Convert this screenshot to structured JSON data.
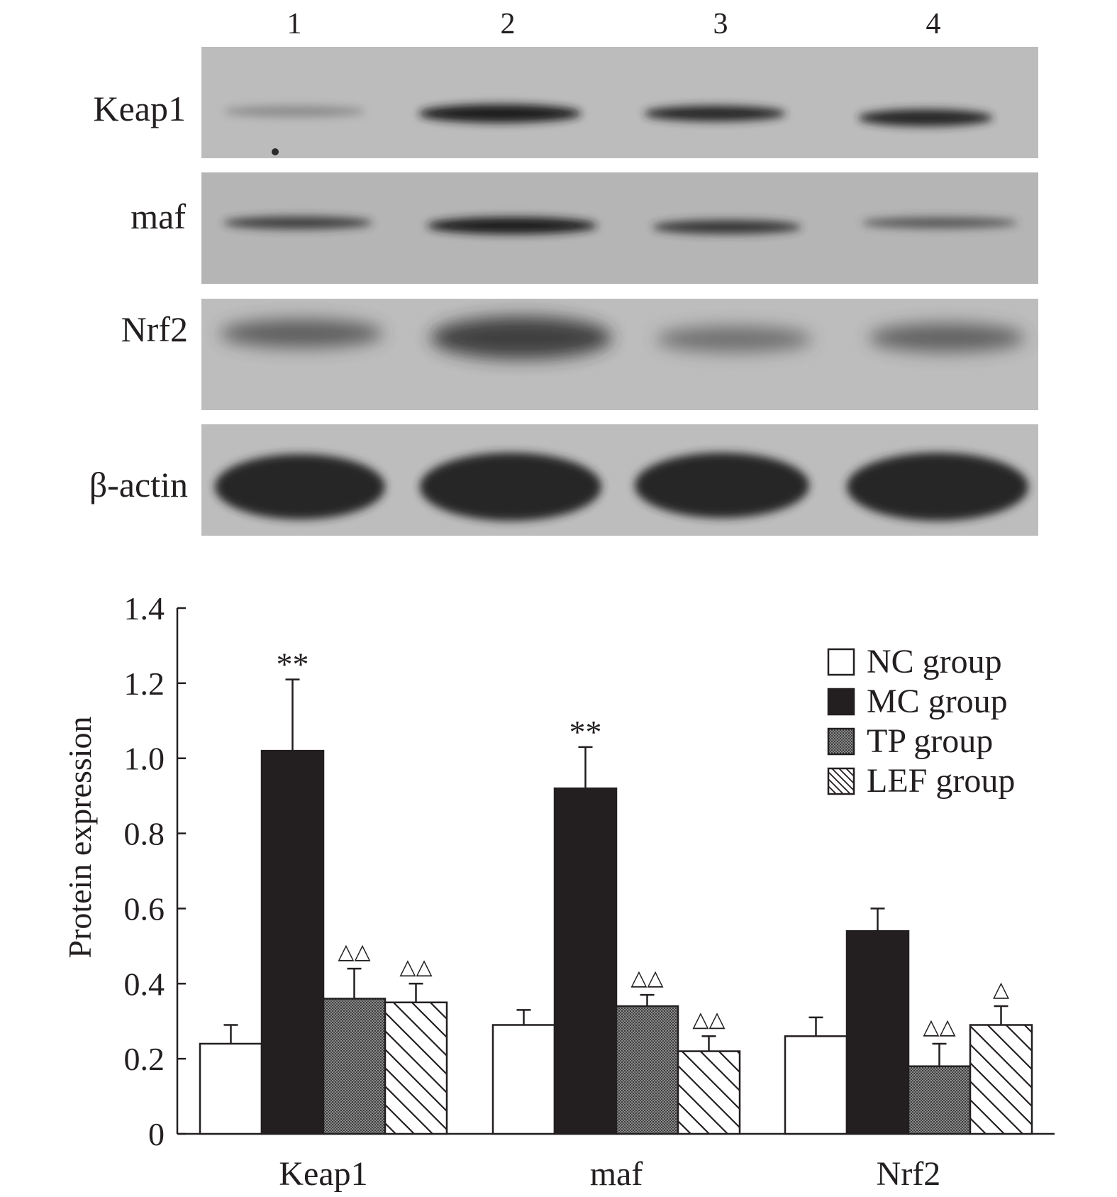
{
  "blot": {
    "lane_labels": [
      "1",
      "2",
      "3",
      "4"
    ],
    "rows": [
      {
        "label": "Keap1"
      },
      {
        "label": "maf"
      },
      {
        "label": "Nrf2"
      },
      {
        "label": "β-actin"
      }
    ]
  },
  "chart_data": {
    "type": "bar",
    "categories": [
      "Keap1",
      "maf",
      "Nrf2"
    ],
    "ylabel": "Protein expression",
    "xlabel": "",
    "ylim": [
      0,
      1.4
    ],
    "yticks": [
      "0",
      "0.2",
      "0.4",
      "0.6",
      "0.8",
      "1.0",
      "1.2",
      "1.4"
    ],
    "legend_position": "top-right",
    "series": [
      {
        "name": "NC group",
        "fill": "white",
        "values": [
          0.24,
          0.29,
          0.26
        ],
        "errors": [
          0.05,
          0.04,
          0.05
        ],
        "annotations": [
          "",
          "",
          ""
        ]
      },
      {
        "name": "MC group",
        "fill": "black",
        "values": [
          1.02,
          0.92,
          0.54
        ],
        "errors": [
          0.19,
          0.11,
          0.06
        ],
        "annotations": [
          "**",
          "**",
          ""
        ]
      },
      {
        "name": "TP group",
        "fill": "stipple",
        "values": [
          0.36,
          0.34,
          0.18
        ],
        "errors": [
          0.08,
          0.03,
          0.06
        ],
        "annotations": [
          "△△",
          "△△",
          "△△"
        ]
      },
      {
        "name": "LEF group",
        "fill": "hatch",
        "values": [
          0.35,
          0.22,
          0.29
        ],
        "errors": [
          0.05,
          0.04,
          0.05
        ],
        "annotations": [
          "△△",
          "△△",
          "△"
        ]
      }
    ],
    "colors": {
      "ink": "#231f20",
      "membrane": "#b8b8b8",
      "band": "#262626"
    }
  }
}
